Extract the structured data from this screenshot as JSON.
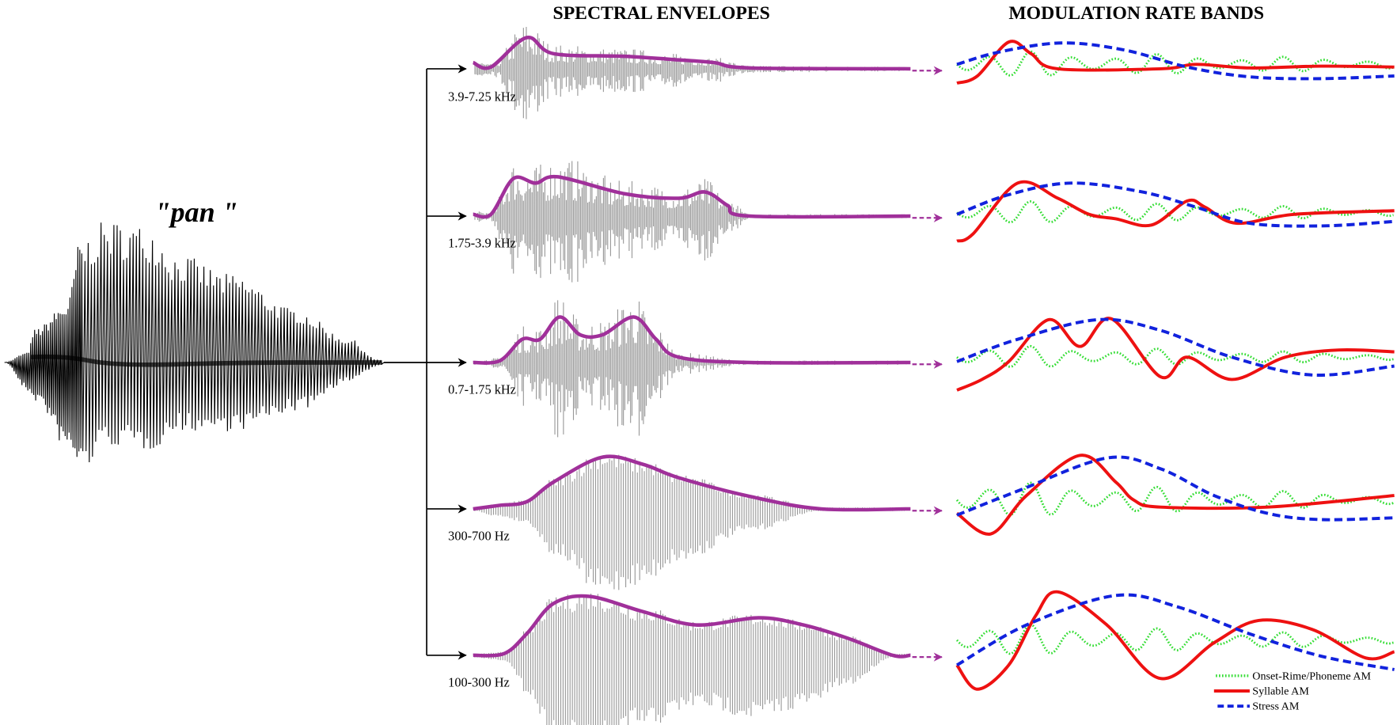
{
  "word": "\"pan \"",
  "titles": {
    "spectral": "SPECTRAL ENVELOPES",
    "modulation": "MODULATION RATE BANDS"
  },
  "bands": [
    {
      "label": "3.9-7.25 kHz"
    },
    {
      "label": "1.75-3.9 kHz"
    },
    {
      "label": "0.7-1.75 kHz"
    },
    {
      "label": "300-700 Hz"
    },
    {
      "label": "100-300 Hz"
    }
  ],
  "legend": [
    {
      "label": "Onset-Rime/Phoneme AM",
      "color": "#33dd33",
      "style": "dotted"
    },
    {
      "label": "Syllable AM",
      "color": "#ee1111",
      "style": "solid"
    },
    {
      "label": "Stress AM",
      "color": "#1122dd",
      "style": "dashed"
    }
  ],
  "colors": {
    "envelope": "#a0309a",
    "carrier": "#999999",
    "waveform": "#000000",
    "phoneme": "#33dd33",
    "syllable": "#ee1111",
    "stress": "#1122dd"
  }
}
